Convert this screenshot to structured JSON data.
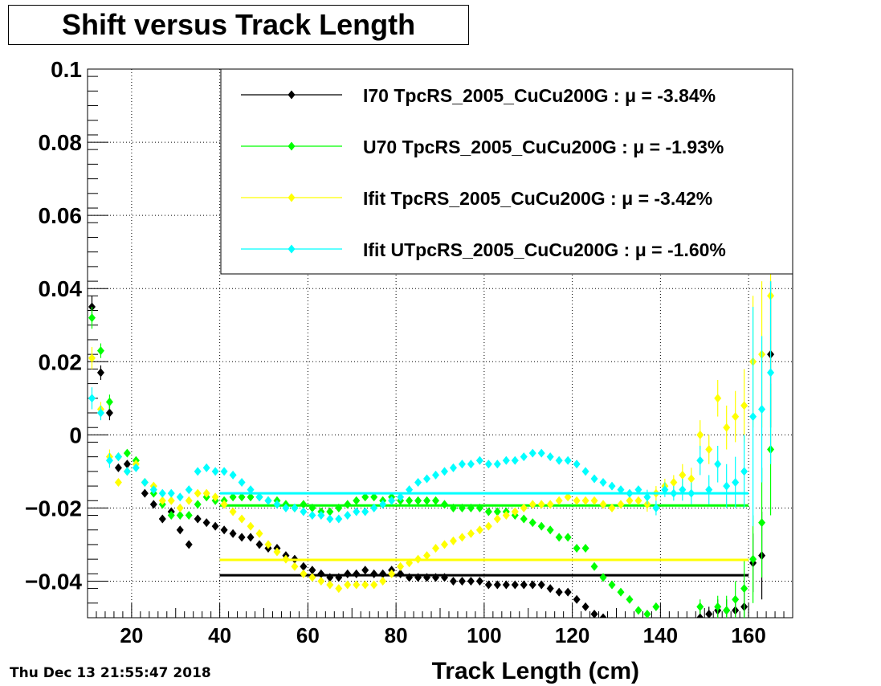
{
  "title": "Shift versus Track Length",
  "datestamp": "Thu Dec 13 21:55:47 2018",
  "chart_data": {
    "type": "scatter",
    "title": "Shift versus Track Length",
    "xlabel": "Track Length (cm)",
    "ylabel": "",
    "xlim": [
      10,
      170
    ],
    "ylim": [
      -0.05,
      0.1
    ],
    "xticks": [
      20,
      40,
      60,
      80,
      100,
      120,
      140,
      160
    ],
    "xtick_labels": [
      "20",
      "40",
      "60",
      "80",
      "100",
      "120",
      "140",
      "160"
    ],
    "yticks": [
      -0.04,
      -0.02,
      0,
      0.02,
      0.04,
      0.06,
      0.08,
      0.1
    ],
    "ytick_labels": [
      "−0.04",
      "−0.02",
      "0",
      "0.02",
      "0.04",
      "0.06",
      "0.08",
      "0.1"
    ],
    "grid": true,
    "legend_position": "top-right",
    "series": [
      {
        "name": "I70  TpcRS_2005_CuCu200G : μ = -3.84%",
        "color": "#000000",
        "mean": -0.0384,
        "mean_range": [
          40,
          160
        ],
        "x": [
          11,
          13,
          15,
          17,
          19,
          23,
          25,
          27,
          29,
          31,
          33,
          35,
          37,
          39,
          41,
          43,
          45,
          47,
          49,
          51,
          53,
          55,
          57,
          59,
          61,
          63,
          65,
          67,
          69,
          71,
          73,
          75,
          77,
          79,
          81,
          83,
          85,
          87,
          89,
          91,
          93,
          95,
          97,
          99,
          101,
          103,
          105,
          107,
          109,
          111,
          113,
          115,
          117,
          119,
          121,
          123,
          125,
          127,
          129,
          131,
          133,
          135,
          137,
          139,
          141,
          143,
          145,
          147,
          149,
          151,
          153,
          155,
          157,
          159,
          161,
          163,
          165
        ],
        "y": [
          0.035,
          0.017,
          0.006,
          -0.009,
          -0.008,
          -0.016,
          -0.019,
          -0.023,
          -0.021,
          -0.026,
          -0.03,
          -0.023,
          -0.024,
          -0.025,
          -0.026,
          -0.027,
          -0.028,
          -0.028,
          -0.03,
          -0.031,
          -0.031,
          -0.033,
          -0.034,
          -0.036,
          -0.037,
          -0.038,
          -0.039,
          -0.039,
          -0.038,
          -0.038,
          -0.037,
          -0.038,
          -0.038,
          -0.037,
          -0.038,
          -0.039,
          -0.039,
          -0.039,
          -0.039,
          -0.039,
          -0.04,
          -0.04,
          -0.04,
          -0.04,
          -0.041,
          -0.041,
          -0.041,
          -0.041,
          -0.041,
          -0.041,
          -0.041,
          -0.042,
          -0.043,
          -0.043,
          -0.045,
          -0.047,
          -0.049,
          -0.05,
          -0.051,
          -0.052,
          -0.053,
          -0.054,
          -0.055,
          -0.056,
          -0.055,
          -0.054,
          -0.053,
          -0.052,
          -0.05,
          -0.049,
          -0.048,
          -0.048,
          -0.048,
          -0.047,
          -0.035,
          -0.033,
          0.022
        ],
        "err": [
          0.003,
          0.002,
          0.002,
          0.001,
          0.001,
          0.001,
          0.001,
          0.001,
          0.001,
          0.001,
          0.001,
          0.001,
          0.001,
          0.001,
          0.001,
          0.001,
          0.001,
          0.001,
          0.001,
          0.001,
          0.001,
          0.001,
          0.001,
          0.001,
          0.001,
          0.001,
          0.001,
          0.001,
          0.001,
          0.001,
          0.001,
          0.001,
          0.001,
          0.001,
          0.001,
          0.001,
          0.001,
          0.001,
          0.001,
          0.001,
          0.001,
          0.001,
          0.001,
          0.001,
          0.001,
          0.001,
          0.001,
          0.001,
          0.001,
          0.001,
          0.001,
          0.001,
          0.001,
          0.001,
          0.001,
          0.001,
          0.001,
          0.001,
          0.001,
          0.001,
          0.001,
          0.001,
          0.001,
          0.001,
          0.001,
          0.001,
          0.002,
          0.002,
          0.002,
          0.002,
          0.003,
          0.003,
          0.004,
          0.005,
          0.008,
          0.012,
          0.02
        ]
      },
      {
        "name": "U70  TpcRS_2005_CuCu200G : μ = -1.93%",
        "color": "#00ff00",
        "mean": -0.0193,
        "mean_range": [
          40,
          160
        ],
        "x": [
          11,
          13,
          15,
          17,
          19,
          21,
          23,
          25,
          27,
          29,
          31,
          33,
          35,
          37,
          39,
          41,
          43,
          45,
          47,
          49,
          51,
          53,
          55,
          57,
          59,
          61,
          63,
          65,
          67,
          69,
          71,
          73,
          75,
          77,
          79,
          81,
          83,
          85,
          87,
          89,
          91,
          93,
          95,
          97,
          99,
          101,
          103,
          105,
          107,
          109,
          111,
          113,
          115,
          117,
          119,
          121,
          123,
          125,
          127,
          129,
          131,
          133,
          135,
          137,
          139,
          141,
          143,
          145,
          147,
          149,
          151,
          153,
          155,
          157,
          159,
          161,
          163,
          165
        ],
        "y": [
          0.032,
          0.023,
          0.009,
          -0.006,
          -0.005,
          -0.007,
          -0.013,
          -0.016,
          -0.019,
          -0.022,
          -0.022,
          -0.022,
          -0.019,
          -0.017,
          -0.018,
          -0.018,
          -0.017,
          -0.017,
          -0.017,
          -0.017,
          -0.018,
          -0.018,
          -0.019,
          -0.02,
          -0.019,
          -0.02,
          -0.021,
          -0.021,
          -0.02,
          -0.019,
          -0.018,
          -0.017,
          -0.017,
          -0.018,
          -0.017,
          -0.018,
          -0.018,
          -0.018,
          -0.018,
          -0.018,
          -0.019,
          -0.02,
          -0.02,
          -0.02,
          -0.02,
          -0.021,
          -0.021,
          -0.021,
          -0.022,
          -0.023,
          -0.024,
          -0.025,
          -0.026,
          -0.028,
          -0.028,
          -0.031,
          -0.031,
          -0.036,
          -0.039,
          -0.041,
          -0.043,
          -0.045,
          -0.048,
          -0.049,
          -0.047,
          -0.052,
          -0.053,
          -0.055,
          -0.052,
          -0.047,
          -0.053,
          -0.047,
          -0.048,
          -0.045,
          -0.042,
          -0.034,
          -0.024,
          -0.004
        ],
        "err": [
          0.003,
          0.002,
          0.002,
          0.001,
          0.001,
          0.001,
          0.001,
          0.001,
          0.001,
          0.001,
          0.001,
          0.001,
          0.001,
          0.001,
          0.001,
          0.001,
          0.001,
          0.001,
          0.001,
          0.001,
          0.001,
          0.001,
          0.001,
          0.001,
          0.001,
          0.001,
          0.001,
          0.001,
          0.001,
          0.001,
          0.001,
          0.001,
          0.001,
          0.001,
          0.001,
          0.001,
          0.001,
          0.001,
          0.001,
          0.001,
          0.001,
          0.001,
          0.001,
          0.001,
          0.001,
          0.001,
          0.001,
          0.001,
          0.001,
          0.001,
          0.001,
          0.001,
          0.001,
          0.001,
          0.001,
          0.001,
          0.001,
          0.001,
          0.001,
          0.001,
          0.001,
          0.001,
          0.001,
          0.001,
          0.001,
          0.001,
          0.002,
          0.002,
          0.002,
          0.002,
          0.003,
          0.003,
          0.004,
          0.005,
          0.008,
          0.012,
          0.015,
          0.018
        ]
      },
      {
        "name": "Ifit TpcRS_2005_CuCu200G : μ = -3.42%",
        "color": "#ffff00",
        "mean": -0.0342,
        "mean_range": [
          40,
          160
        ],
        "x": [
          11,
          13,
          15,
          17,
          19,
          21,
          23,
          25,
          27,
          29,
          31,
          33,
          35,
          37,
          39,
          41,
          43,
          45,
          47,
          49,
          51,
          53,
          55,
          57,
          59,
          61,
          63,
          65,
          67,
          69,
          71,
          73,
          75,
          77,
          79,
          81,
          83,
          85,
          87,
          89,
          91,
          93,
          95,
          97,
          99,
          101,
          103,
          105,
          107,
          109,
          111,
          113,
          115,
          117,
          119,
          121,
          123,
          125,
          127,
          129,
          131,
          133,
          135,
          137,
          139,
          141,
          143,
          145,
          147,
          149,
          151,
          153,
          155,
          157,
          159,
          161,
          163,
          165
        ],
        "y": [
          0.021,
          0.007,
          -0.006,
          -0.013,
          -0.01,
          -0.008,
          -0.013,
          -0.014,
          -0.018,
          -0.018,
          -0.02,
          -0.018,
          -0.016,
          -0.016,
          -0.017,
          -0.019,
          -0.021,
          -0.023,
          -0.025,
          -0.027,
          -0.03,
          -0.032,
          -0.034,
          -0.036,
          -0.038,
          -0.039,
          -0.04,
          -0.041,
          -0.042,
          -0.041,
          -0.041,
          -0.041,
          -0.041,
          -0.04,
          -0.038,
          -0.036,
          -0.035,
          -0.034,
          -0.033,
          -0.031,
          -0.03,
          -0.029,
          -0.028,
          -0.027,
          -0.026,
          -0.025,
          -0.023,
          -0.022,
          -0.021,
          -0.02,
          -0.019,
          -0.019,
          -0.019,
          -0.018,
          -0.017,
          -0.018,
          -0.018,
          -0.018,
          -0.019,
          -0.02,
          -0.019,
          -0.018,
          -0.018,
          -0.019,
          -0.016,
          -0.014,
          -0.013,
          -0.011,
          -0.012,
          0.0,
          -0.004,
          0.01,
          0.002,
          0.005,
          0.008,
          0.02,
          0.022,
          0.038
        ],
        "err": [
          0.003,
          0.002,
          0.002,
          0.001,
          0.001,
          0.001,
          0.001,
          0.001,
          0.001,
          0.001,
          0.001,
          0.001,
          0.001,
          0.001,
          0.001,
          0.001,
          0.001,
          0.001,
          0.001,
          0.001,
          0.001,
          0.001,
          0.001,
          0.001,
          0.001,
          0.001,
          0.001,
          0.001,
          0.001,
          0.001,
          0.001,
          0.001,
          0.001,
          0.001,
          0.001,
          0.001,
          0.001,
          0.001,
          0.001,
          0.001,
          0.001,
          0.001,
          0.001,
          0.001,
          0.001,
          0.001,
          0.001,
          0.001,
          0.001,
          0.001,
          0.001,
          0.001,
          0.001,
          0.001,
          0.001,
          0.001,
          0.001,
          0.001,
          0.001,
          0.001,
          0.001,
          0.001,
          0.001,
          0.002,
          0.002,
          0.002,
          0.002,
          0.003,
          0.003,
          0.004,
          0.004,
          0.005,
          0.006,
          0.007,
          0.01,
          0.018,
          0.02,
          0.022
        ]
      },
      {
        "name": "Ifit UTpcRS_2005_CuCu200G : μ = -1.60%",
        "color": "#00ffff",
        "mean": -0.016,
        "mean_range": [
          40,
          160
        ],
        "x": [
          11,
          13,
          15,
          17,
          19,
          21,
          23,
          25,
          27,
          29,
          31,
          33,
          35,
          37,
          39,
          41,
          43,
          45,
          47,
          49,
          51,
          53,
          55,
          57,
          59,
          61,
          63,
          65,
          67,
          69,
          71,
          73,
          75,
          77,
          79,
          81,
          83,
          85,
          87,
          89,
          91,
          93,
          95,
          97,
          99,
          101,
          103,
          105,
          107,
          109,
          111,
          113,
          115,
          117,
          119,
          121,
          123,
          125,
          127,
          129,
          131,
          133,
          135,
          137,
          139,
          141,
          143,
          145,
          147,
          149,
          151,
          153,
          155,
          157,
          159,
          161,
          163,
          165
        ],
        "y": [
          0.01,
          0.006,
          -0.007,
          -0.006,
          -0.01,
          -0.009,
          -0.013,
          -0.015,
          -0.016,
          -0.016,
          -0.017,
          -0.015,
          -0.01,
          -0.009,
          -0.01,
          -0.01,
          -0.011,
          -0.013,
          -0.015,
          -0.017,
          -0.018,
          -0.019,
          -0.02,
          -0.02,
          -0.021,
          -0.022,
          -0.022,
          -0.023,
          -0.023,
          -0.022,
          -0.021,
          -0.021,
          -0.02,
          -0.019,
          -0.018,
          -0.017,
          -0.015,
          -0.013,
          -0.012,
          -0.011,
          -0.01,
          -0.009,
          -0.008,
          -0.008,
          -0.007,
          -0.008,
          -0.008,
          -0.007,
          -0.007,
          -0.006,
          -0.005,
          -0.005,
          -0.006,
          -0.007,
          -0.007,
          -0.008,
          -0.01,
          -0.012,
          -0.013,
          -0.014,
          -0.015,
          -0.016,
          -0.015,
          -0.017,
          -0.02,
          -0.015,
          -0.016,
          -0.015,
          -0.016,
          -0.007,
          -0.015,
          -0.008,
          -0.014,
          -0.013,
          -0.01,
          0.005,
          0.007,
          0.017
        ],
        "err": [
          0.003,
          0.002,
          0.002,
          0.001,
          0.001,
          0.001,
          0.001,
          0.001,
          0.001,
          0.001,
          0.001,
          0.001,
          0.001,
          0.001,
          0.001,
          0.001,
          0.001,
          0.001,
          0.001,
          0.001,
          0.001,
          0.001,
          0.001,
          0.001,
          0.001,
          0.001,
          0.001,
          0.001,
          0.001,
          0.001,
          0.001,
          0.001,
          0.001,
          0.001,
          0.001,
          0.001,
          0.001,
          0.001,
          0.001,
          0.001,
          0.001,
          0.001,
          0.001,
          0.001,
          0.001,
          0.001,
          0.001,
          0.001,
          0.001,
          0.001,
          0.001,
          0.001,
          0.001,
          0.001,
          0.001,
          0.001,
          0.001,
          0.001,
          0.001,
          0.001,
          0.001,
          0.001,
          0.001,
          0.002,
          0.002,
          0.002,
          0.002,
          0.003,
          0.003,
          0.004,
          0.004,
          0.005,
          0.006,
          0.007,
          0.01,
          0.03,
          0.02,
          0.025
        ]
      }
    ]
  }
}
